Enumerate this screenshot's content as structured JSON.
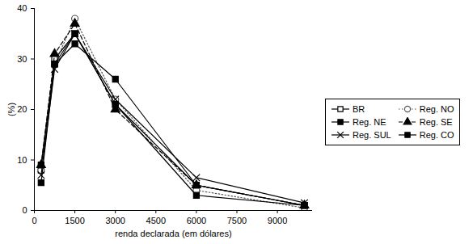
{
  "chart_data": {
    "type": "line",
    "x_label": "renda declarada (em dólares)",
    "y_label": "(%)",
    "x": [
      250,
      750,
      1500,
      3000,
      6000,
      10000
    ],
    "xlim": [
      0,
      10300
    ],
    "xticks": [
      0,
      1500,
      3000,
      4500,
      6000,
      7500,
      9000
    ],
    "ylim": [
      0,
      40
    ],
    "yticks": [
      0,
      10,
      20,
      30,
      40
    ],
    "grid": false,
    "legend": "right",
    "series": [
      {
        "name": "BR",
        "color": "#000000",
        "marker": "square",
        "line_style": "solid",
        "values": [
          8,
          30,
          35,
          21,
          5,
          1
        ]
      },
      {
        "name": "Reg. NO",
        "color": "#555555",
        "marker": "circle",
        "line_style": "dotted",
        "values": [
          8,
          29,
          38,
          22,
          4,
          0.5
        ]
      },
      {
        "name": "Reg. NE",
        "color": "#000000",
        "marker": "filled-square",
        "line_style": "solid",
        "values": [
          9,
          29,
          35,
          21,
          3,
          1
        ]
      },
      {
        "name": "Reg. SE",
        "color": "#000000",
        "marker": "filled-triangle",
        "line_style": "dashed",
        "values": [
          9,
          31,
          37,
          20,
          5,
          1
        ]
      },
      {
        "name": "Reg. SUL",
        "color": "#000000",
        "marker": "times",
        "line_style": "solid",
        "values": [
          7,
          28,
          35,
          22,
          6.5,
          1.5
        ]
      },
      {
        "name": "Reg. CO",
        "color": "#000000",
        "marker": "filled-square",
        "line_style": "solid",
        "values": [
          5.5,
          29,
          33,
          26,
          5,
          1
        ]
      }
    ]
  }
}
